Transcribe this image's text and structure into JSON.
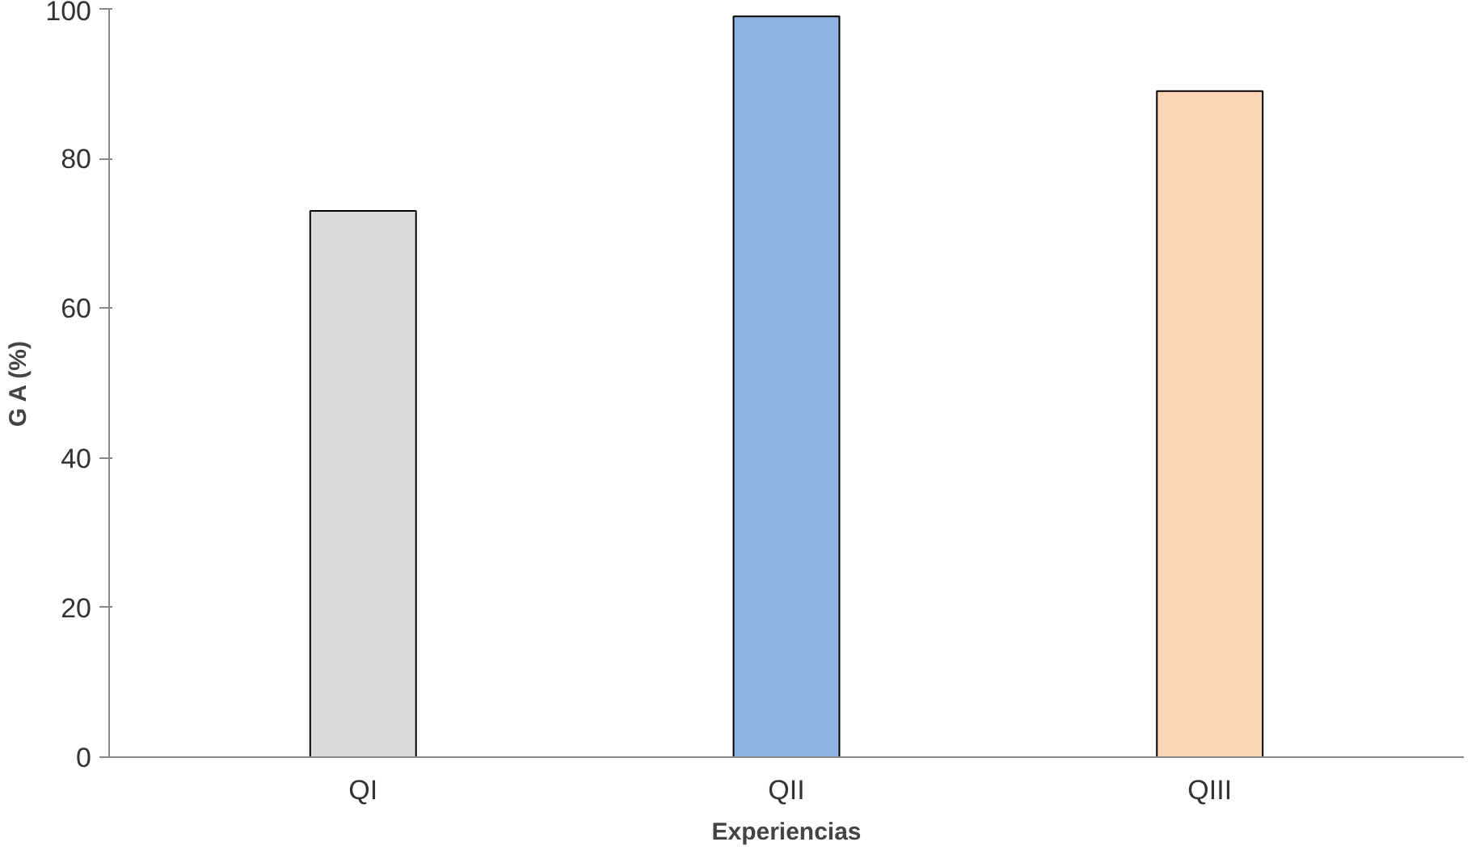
{
  "chart_data": {
    "type": "bar",
    "xlabel": "Experiencias",
    "ylabel": "G A (%)",
    "categories": [
      "QI",
      "QII",
      "QIII"
    ],
    "values": [
      73,
      99,
      89
    ],
    "colors": [
      "#d9d9d9",
      "#8db3e2",
      "#fcd5b4"
    ],
    "ylim": [
      0,
      100
    ],
    "yticks": [
      0,
      20,
      40,
      60,
      80,
      100
    ],
    "grid": false
  }
}
